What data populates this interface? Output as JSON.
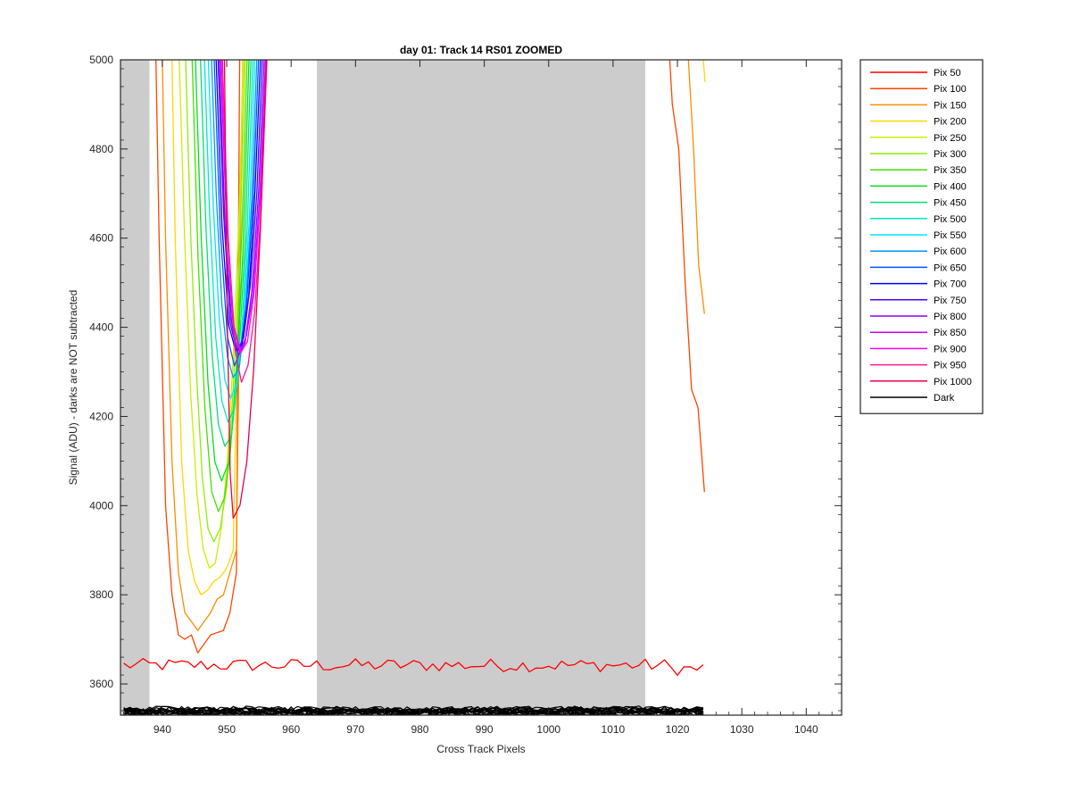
{
  "chart_data": {
    "type": "line",
    "title": "day 01: Track 14  RS01 ZOOMED",
    "xlabel": "Cross Track Pixels",
    "ylabel": "Signal (ADU) - darks are NOT subtracted",
    "xlim": [
      933.5,
      1045.5
    ],
    "ylim": [
      3530,
      5000
    ],
    "xticks": [
      940,
      950,
      960,
      970,
      980,
      990,
      1000,
      1010,
      1020,
      1030,
      1040
    ],
    "yticks": [
      3600,
      3800,
      4000,
      4200,
      4400,
      4600,
      4800,
      5000
    ],
    "grid": false,
    "legend_location": "outside-top-right",
    "shaded_regions": [
      [
        933.5,
        938
      ],
      [
        964,
        1015
      ]
    ],
    "series": [
      {
        "name": "Pix 50",
        "color": "#ff0000",
        "kind": "flat",
        "base": 3642
      },
      {
        "name": "Pix 100",
        "color": "#ff4500",
        "kind": "pair",
        "left": [
          [
            939,
            5000
          ],
          [
            939.5,
            4600
          ],
          [
            940.5,
            4000
          ],
          [
            941.5,
            3800
          ],
          [
            942.5,
            3710
          ],
          [
            943.5,
            3700
          ],
          [
            944.5,
            3710
          ],
          [
            945.5,
            3670
          ],
          [
            946.5,
            3690
          ],
          [
            947.5,
            3710
          ],
          [
            948.5,
            3715
          ],
          [
            949.5,
            3720
          ],
          [
            950.5,
            3760
          ],
          [
            951.5,
            3850
          ],
          [
            952,
            5000
          ]
        ],
        "right": [
          [
            1018.8,
            5000
          ],
          [
            1019.2,
            4900
          ],
          [
            1020.2,
            4800
          ],
          [
            1021.2,
            4500
          ],
          [
            1022.2,
            4260
          ],
          [
            1023.2,
            4220
          ],
          [
            1024.2,
            4030
          ]
        ]
      },
      {
        "name": "Pix 150",
        "color": "#ff8c00",
        "kind": "pair",
        "left": [
          [
            940,
            5000
          ],
          [
            940.5,
            4600
          ],
          [
            941.5,
            4100
          ],
          [
            942.5,
            3850
          ],
          [
            943.5,
            3760
          ],
          [
            944.5,
            3740
          ],
          [
            945.5,
            3720
          ],
          [
            946.5,
            3740
          ],
          [
            947.5,
            3760
          ],
          [
            948.5,
            3790
          ],
          [
            949.5,
            3800
          ],
          [
            950.5,
            3850
          ],
          [
            951.5,
            3900
          ],
          [
            952.5,
            5000
          ]
        ],
        "right": [
          [
            1021.7,
            5000
          ],
          [
            1022.5,
            4800
          ],
          [
            1023.3,
            4540
          ],
          [
            1024.2,
            4430
          ]
        ]
      },
      {
        "name": "Pix 200",
        "color": "#ffd700",
        "kind": "pair",
        "left": [
          [
            941.5,
            5000
          ],
          [
            942,
            4600
          ],
          [
            943,
            4100
          ],
          [
            944,
            3900
          ],
          [
            945,
            3830
          ],
          [
            946,
            3800
          ],
          [
            947,
            3810
          ],
          [
            948,
            3830
          ],
          [
            949,
            3840
          ],
          [
            950,
            3860
          ],
          [
            951,
            3900
          ],
          [
            952.5,
            5000
          ]
        ],
        "right": [
          [
            1024,
            5000
          ],
          [
            1024.3,
            4950
          ]
        ]
      },
      {
        "name": "Pix 250",
        "color": "#c8f000",
        "kind": "v",
        "l0": 942.5,
        "r0": 952.8,
        "min": 3860,
        "cx": 947.3
      },
      {
        "name": "Pix 300",
        "color": "#90ee00",
        "kind": "v",
        "l0": 943.5,
        "r0": 953.0,
        "min": 3920,
        "cx": 948.0
      },
      {
        "name": "Pix 350",
        "color": "#44e000",
        "kind": "v",
        "l0": 944.5,
        "r0": 953.3,
        "min": 3990,
        "cx": 948.7
      },
      {
        "name": "Pix 400",
        "color": "#00e020",
        "kind": "v",
        "l0": 945.0,
        "r0": 953.6,
        "min": 4060,
        "cx": 949.2
      },
      {
        "name": "Pix 450",
        "color": "#00e07a",
        "kind": "v",
        "l0": 945.8,
        "r0": 953.9,
        "min": 4130,
        "cx": 949.7
      },
      {
        "name": "Pix 500",
        "color": "#00e8c0",
        "kind": "v",
        "l0": 946.4,
        "r0": 954.2,
        "min": 4190,
        "cx": 950.2
      },
      {
        "name": "Pix 550",
        "color": "#00e5ff",
        "kind": "v",
        "l0": 947.0,
        "r0": 954.5,
        "min": 4240,
        "cx": 950.6
      },
      {
        "name": "Pix 600",
        "color": "#0099ff",
        "kind": "v",
        "l0": 947.5,
        "r0": 954.8,
        "min": 4290,
        "cx": 951.0
      },
      {
        "name": "Pix 650",
        "color": "#0055ff",
        "kind": "v",
        "l0": 947.9,
        "r0": 955.1,
        "min": 4320,
        "cx": 951.2
      },
      {
        "name": "Pix 700",
        "color": "#0000ff",
        "kind": "v",
        "l0": 948.2,
        "r0": 955.4,
        "min": 4340,
        "cx": 951.4
      },
      {
        "name": "Pix 750",
        "color": "#4b00ff",
        "kind": "v",
        "l0": 948.5,
        "r0": 955.7,
        "min": 4350,
        "cx": 951.6
      },
      {
        "name": "Pix 800",
        "color": "#8a00ff",
        "kind": "v",
        "l0": 948.7,
        "r0": 956.0,
        "min": 4340,
        "cx": 951.8
      },
      {
        "name": "Pix 850",
        "color": "#c800ff",
        "kind": "v",
        "l0": 948.9,
        "r0": 956.2,
        "min": 4350,
        "cx": 952.0
      },
      {
        "name": "Pix 900",
        "color": "#ff00ff",
        "kind": "v",
        "l0": 949.0,
        "r0": 956.3,
        "min": 4340,
        "cx": 952.2
      },
      {
        "name": "Pix 950",
        "color": "#ff1493",
        "kind": "v",
        "l0": 949.2,
        "r0": 956.4,
        "min": 4280,
        "cx": 952.3
      },
      {
        "name": "Pix 1000",
        "color": "#e8004a",
        "kind": "v",
        "l0": 949.6,
        "r0": 956.3,
        "min": 3980,
        "cx": 951.0
      },
      {
        "name": "Dark",
        "color": "#000000",
        "kind": "dark",
        "base": 3538
      }
    ]
  }
}
